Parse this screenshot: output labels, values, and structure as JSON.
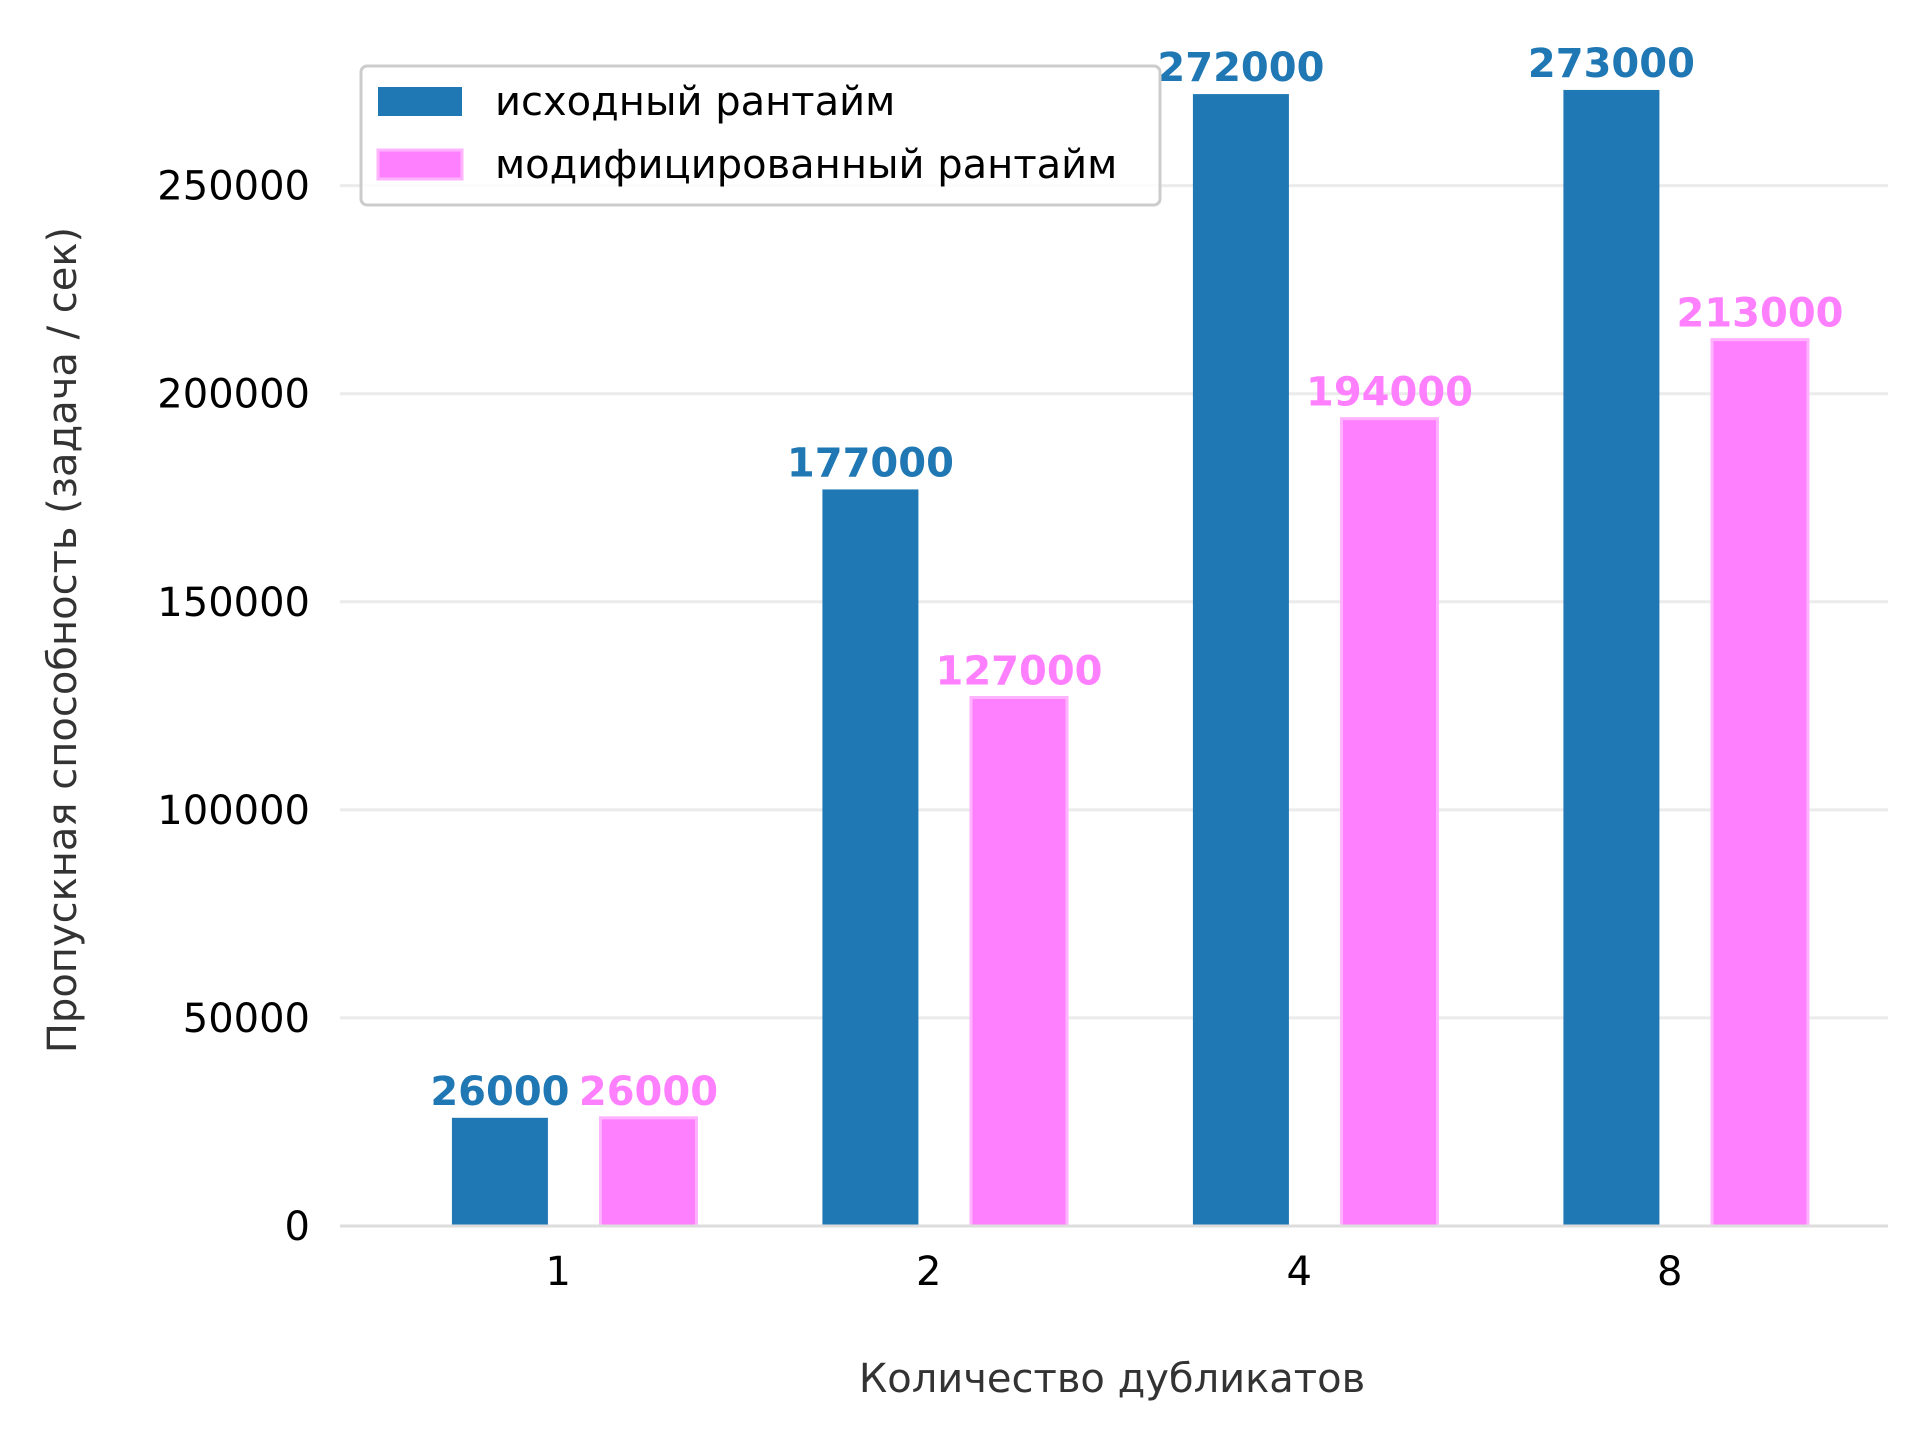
{
  "chart_data": {
    "type": "bar",
    "title": "",
    "xlabel": "Количество дубликатов",
    "ylabel": "Пропускная способность (задача / сек)",
    "categories": [
      "1",
      "2",
      "4",
      "8"
    ],
    "series": [
      {
        "name": "исходный рантайм",
        "values": [
          26000,
          177000,
          272000,
          273000
        ],
        "color": "#1f77b4",
        "label_color": "#1f77b4"
      },
      {
        "name": "модифицированный рантайм",
        "values": [
          26000,
          127000,
          194000,
          213000
        ],
        "color": "#ff80ff",
        "label_color": "#ff80ff"
      }
    ],
    "ylim": [
      0,
      285000
    ],
    "yticks": [
      0,
      50000,
      100000,
      150000,
      200000,
      250000
    ],
    "grid": "horizontal",
    "legend_position": "top-left"
  }
}
